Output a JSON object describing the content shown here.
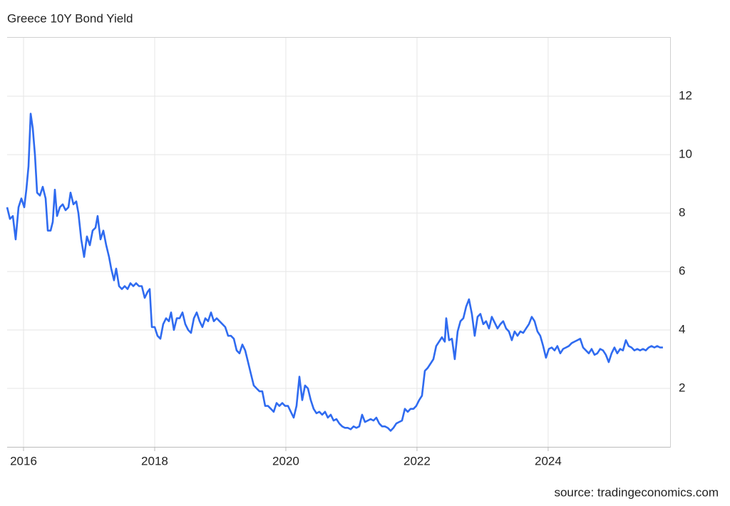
{
  "chart_data": {
    "type": "line",
    "title": "Greece 10Y Bond Yield",
    "source": "source: tradingeconomics.com",
    "color": "#2f6bf0",
    "grid": true,
    "xlim": [
      2015.75,
      2025.86
    ],
    "xticks": [
      2016,
      2018,
      2020,
      2022,
      2024
    ],
    "ylim": [
      0,
      14
    ],
    "yticks": [
      2,
      4,
      6,
      8,
      10,
      12
    ],
    "x": [
      2015.75,
      2015.793,
      2015.837,
      2015.88,
      2015.924,
      2015.967,
      2016.011,
      2016.043,
      2016.076,
      2016.109,
      2016.141,
      2016.174,
      2016.207,
      2016.25,
      2016.293,
      2016.337,
      2016.37,
      2016.413,
      2016.446,
      2016.478,
      2016.511,
      2016.554,
      2016.598,
      2016.641,
      2016.685,
      2016.717,
      2016.761,
      2016.804,
      2016.837,
      2016.88,
      2016.924,
      2016.967,
      2017.011,
      2017.054,
      2017.098,
      2017.13,
      2017.174,
      2017.217,
      2017.261,
      2017.304,
      2017.337,
      2017.38,
      2017.413,
      2017.457,
      2017.5,
      2017.543,
      2017.587,
      2017.63,
      2017.674,
      2017.717,
      2017.761,
      2017.804,
      2017.848,
      2017.891,
      2017.924,
      2017.957,
      2018.0,
      2018.043,
      2018.087,
      2018.13,
      2018.174,
      2018.217,
      2018.25,
      2018.293,
      2018.337,
      2018.38,
      2018.424,
      2018.467,
      2018.511,
      2018.554,
      2018.598,
      2018.641,
      2018.685,
      2018.728,
      2018.772,
      2018.815,
      2018.859,
      2018.902,
      2018.946,
      2018.989,
      2019.033,
      2019.076,
      2019.12,
      2019.163,
      2019.207,
      2019.25,
      2019.293,
      2019.337,
      2019.38,
      2019.424,
      2019.467,
      2019.511,
      2019.554,
      2019.598,
      2019.641,
      2019.685,
      2019.728,
      2019.772,
      2019.815,
      2019.859,
      2019.902,
      2019.946,
      2019.989,
      2020.033,
      2020.076,
      2020.12,
      2020.163,
      2020.207,
      2020.25,
      2020.293,
      2020.337,
      2020.38,
      2020.424,
      2020.467,
      2020.511,
      2020.554,
      2020.598,
      2020.641,
      2020.685,
      2020.728,
      2020.772,
      2020.815,
      2020.859,
      2020.902,
      2020.946,
      2020.989,
      2021.033,
      2021.076,
      2021.12,
      2021.163,
      2021.207,
      2021.25,
      2021.293,
      2021.337,
      2021.38,
      2021.424,
      2021.467,
      2021.511,
      2021.554,
      2021.598,
      2021.641,
      2021.685,
      2021.728,
      2021.772,
      2021.815,
      2021.859,
      2021.902,
      2021.946,
      2021.989,
      2022.033,
      2022.076,
      2022.12,
      2022.163,
      2022.207,
      2022.25,
      2022.293,
      2022.337,
      2022.38,
      2022.424,
      2022.446,
      2022.489,
      2022.533,
      2022.576,
      2022.62,
      2022.663,
      2022.707,
      2022.75,
      2022.793,
      2022.837,
      2022.88,
      2022.924,
      2022.967,
      2023.011,
      2023.054,
      2023.098,
      2023.141,
      2023.185,
      2023.228,
      2023.272,
      2023.315,
      2023.359,
      2023.402,
      2023.446,
      2023.489,
      2023.533,
      2023.576,
      2023.62,
      2023.663,
      2023.707,
      2023.75,
      2023.793,
      2023.837,
      2023.88,
      2023.924,
      2023.967,
      2024.011,
      2024.054,
      2024.098,
      2024.141,
      2024.185,
      2024.228,
      2024.272,
      2024.315,
      2024.359,
      2024.402,
      2024.446,
      2024.489,
      2024.533,
      2024.576,
      2024.62,
      2024.663,
      2024.707,
      2024.75,
      2024.793,
      2024.837,
      2024.88,
      2024.924,
      2024.967,
      2025.011,
      2025.054,
      2025.098,
      2025.141,
      2025.185,
      2025.228,
      2025.272,
      2025.315,
      2025.359,
      2025.402,
      2025.446,
      2025.489,
      2025.533,
      2025.576,
      2025.62,
      2025.663,
      2025.707,
      2025.75
    ],
    "values": [
      8.2,
      7.8,
      7.9,
      7.1,
      8.2,
      8.5,
      8.2,
      8.8,
      9.6,
      11.4,
      10.9,
      10.0,
      8.7,
      8.6,
      8.9,
      8.5,
      7.4,
      7.4,
      7.7,
      8.8,
      7.9,
      8.2,
      8.3,
      8.1,
      8.2,
      8.7,
      8.3,
      8.4,
      8.0,
      7.1,
      6.5,
      7.2,
      6.9,
      7.4,
      7.5,
      7.9,
      7.1,
      7.4,
      6.9,
      6.5,
      6.1,
      5.7,
      6.1,
      5.5,
      5.4,
      5.5,
      5.4,
      5.6,
      5.5,
      5.6,
      5.5,
      5.5,
      5.1,
      5.3,
      5.4,
      4.1,
      4.1,
      3.8,
      3.7,
      4.2,
      4.4,
      4.3,
      4.6,
      4.0,
      4.4,
      4.4,
      4.6,
      4.2,
      4.0,
      3.9,
      4.4,
      4.6,
      4.3,
      4.1,
      4.4,
      4.3,
      4.6,
      4.3,
      4.4,
      4.3,
      4.2,
      4.1,
      3.8,
      3.8,
      3.7,
      3.3,
      3.2,
      3.5,
      3.3,
      2.9,
      2.5,
      2.1,
      2.0,
      1.9,
      1.9,
      1.4,
      1.4,
      1.3,
      1.2,
      1.5,
      1.4,
      1.5,
      1.4,
      1.4,
      1.2,
      1.0,
      1.4,
      2.4,
      1.6,
      2.1,
      2.0,
      1.6,
      1.3,
      1.15,
      1.2,
      1.1,
      1.2,
      1.0,
      1.1,
      0.9,
      0.95,
      0.8,
      0.7,
      0.65,
      0.65,
      0.6,
      0.7,
      0.65,
      0.7,
      1.1,
      0.85,
      0.9,
      0.95,
      0.9,
      1.0,
      0.8,
      0.7,
      0.7,
      0.65,
      0.55,
      0.65,
      0.8,
      0.85,
      0.9,
      1.3,
      1.2,
      1.3,
      1.3,
      1.4,
      1.6,
      1.75,
      2.6,
      2.7,
      2.85,
      3.0,
      3.45,
      3.6,
      3.75,
      3.6,
      4.4,
      3.65,
      3.7,
      3.0,
      3.95,
      4.3,
      4.4,
      4.8,
      5.05,
      4.55,
      3.8,
      4.45,
      4.55,
      4.2,
      4.3,
      4.05,
      4.45,
      4.25,
      4.05,
      4.2,
      4.3,
      4.05,
      3.95,
      3.65,
      3.95,
      3.8,
      3.95,
      3.9,
      4.05,
      4.2,
      4.45,
      4.3,
      3.95,
      3.8,
      3.45,
      3.05,
      3.35,
      3.4,
      3.3,
      3.45,
      3.2,
      3.35,
      3.4,
      3.45,
      3.55,
      3.6,
      3.65,
      3.7,
      3.4,
      3.3,
      3.2,
      3.35,
      3.15,
      3.2,
      3.35,
      3.3,
      3.15,
      2.9,
      3.2,
      3.4,
      3.2,
      3.35,
      3.3,
      3.65,
      3.45,
      3.4,
      3.3,
      3.35,
      3.3,
      3.35,
      3.3,
      3.4,
      3.45,
      3.4,
      3.45,
      3.4,
      3.4
    ]
  }
}
